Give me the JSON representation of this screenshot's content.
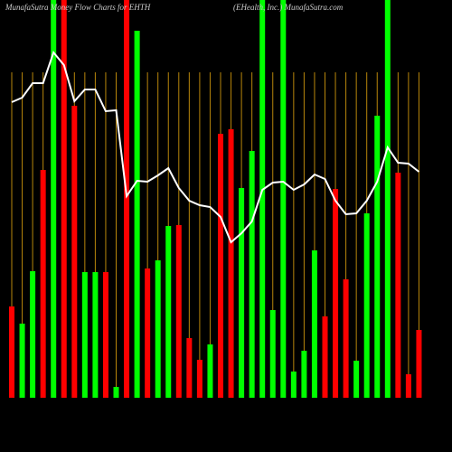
{
  "chart_data": {
    "type": "bar",
    "title": "MunafaSutra Money Flow Charts for EHTH",
    "subtitle": "(EHealth, Inc.) MunafaSutra.com",
    "ylim": [
      0,
      440
    ],
    "series": [
      {
        "name": "Money Flow",
        "colors": [
          "#ff0000",
          "#00ff00",
          "#00ff00",
          "#ff0000",
          "#00ff00",
          "#ff0000",
          "#ff0000",
          "#00ff00",
          "#00ff00",
          "#ff0000",
          "#00ff00",
          "#ff0000",
          "#00ff00",
          "#ff0000",
          "#00ff00",
          "#00ff00",
          "#ff0000",
          "#ff0000",
          "#ff0000",
          "#00ff00",
          "#ff0000",
          "#ff0000",
          "#00ff00",
          "#00ff00",
          "#00ff00",
          "#00ff00",
          "#00ff00",
          "#00ff00",
          "#00ff00",
          "#00ff00",
          "#ff0000",
          "#ff0000",
          "#ff0000",
          "#00ff00",
          "#00ff00",
          "#00ff00",
          "#00ff00",
          "#ff0000",
          "#ff0000",
          "#ff0000"
        ],
        "values": [
          101,
          82,
          140,
          252,
          440,
          440,
          323,
          139,
          139,
          139,
          12,
          440,
          406,
          143,
          152,
          190,
          191,
          66,
          42,
          59,
          292,
          297,
          232,
          273,
          440,
          97,
          440,
          29,
          52,
          163,
          90,
          231,
          131,
          41,
          204,
          312,
          440,
          249,
          26,
          75
        ]
      },
      {
        "name": "Price",
        "type": "line",
        "color": "#ffffff",
        "values": [
          327,
          332,
          348,
          348,
          382,
          368,
          328,
          341,
          341,
          317,
          318,
          223,
          240,
          239,
          246,
          254,
          232,
          218,
          213,
          211,
          200,
          172,
          182,
          195,
          230,
          238,
          239,
          230,
          236,
          247,
          242,
          218,
          203,
          204,
          218,
          239,
          277,
          260,
          259,
          250
        ]
      }
    ]
  }
}
